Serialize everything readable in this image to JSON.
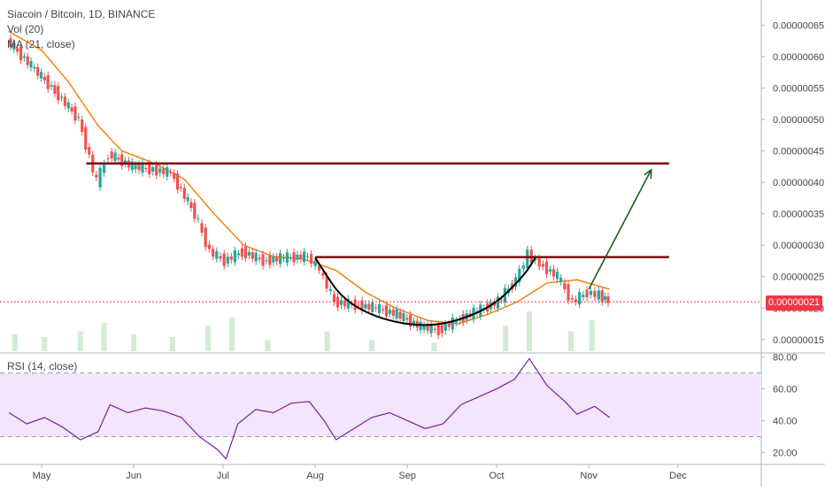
{
  "chart_data": [
    {
      "type": "candlestick",
      "title": "Siacoin / Bitcoin, 1D, BINANCE",
      "indicators": [
        "Vol (20)",
        "MA (21, close)"
      ],
      "x_tick_labels": [
        "May",
        "Jun",
        "Jul",
        "Aug",
        "Sep",
        "Oct",
        "Nov",
        "Dec"
      ],
      "y_tick_labels": [
        "0.00000065",
        "0.00000060",
        "0.00000055",
        "0.00000050",
        "0.00000045",
        "0.00000040",
        "0.00000035",
        "0.00000030",
        "0.00000025",
        "0.00000020",
        "0.00000015"
      ],
      "ylim": [
        1.3e-07,
        6.9e-07
      ],
      "last_price_label": "0.00000021",
      "close_path": [
        {
          "x": "2019-04-20",
          "y": 6.25e-07
        },
        {
          "x": "2019-04-28",
          "y": 5.85e-07
        },
        {
          "x": "2019-05-06",
          "y": 5.45e-07
        },
        {
          "x": "2019-05-14",
          "y": 5e-07
        },
        {
          "x": "2019-05-20",
          "y": 4e-07
        },
        {
          "x": "2019-05-24",
          "y": 4.45e-07
        },
        {
          "x": "2019-06-01",
          "y": 4.25e-07
        },
        {
          "x": "2019-06-08",
          "y": 4.2e-07
        },
        {
          "x": "2019-06-14",
          "y": 4.15e-07
        },
        {
          "x": "2019-06-22",
          "y": 3.5e-07
        },
        {
          "x": "2019-06-27",
          "y": 2.9e-07
        },
        {
          "x": "2019-07-02",
          "y": 2.75e-07
        },
        {
          "x": "2019-07-08",
          "y": 2.9e-07
        },
        {
          "x": "2019-07-15",
          "y": 2.75e-07
        },
        {
          "x": "2019-07-22",
          "y": 2.8e-07
        },
        {
          "x": "2019-07-30",
          "y": 2.82e-07
        },
        {
          "x": "2019-08-03",
          "y": 2.6e-07
        },
        {
          "x": "2019-08-08",
          "y": 2.1e-07
        },
        {
          "x": "2019-08-15",
          "y": 2.05e-07
        },
        {
          "x": "2019-08-22",
          "y": 2e-07
        },
        {
          "x": "2019-08-29",
          "y": 1.9e-07
        },
        {
          "x": "2019-09-06",
          "y": 1.7e-07
        },
        {
          "x": "2019-09-12",
          "y": 1.65e-07
        },
        {
          "x": "2019-09-18",
          "y": 1.8e-07
        },
        {
          "x": "2019-09-25",
          "y": 1.95e-07
        },
        {
          "x": "2019-10-02",
          "y": 2.1e-07
        },
        {
          "x": "2019-10-08",
          "y": 2.45e-07
        },
        {
          "x": "2019-10-12",
          "y": 2.85e-07
        },
        {
          "x": "2019-10-16",
          "y": 2.7e-07
        },
        {
          "x": "2019-10-22",
          "y": 2.5e-07
        },
        {
          "x": "2019-10-27",
          "y": 2.1e-07
        },
        {
          "x": "2019-11-01",
          "y": 2.25e-07
        },
        {
          "x": "2019-11-05",
          "y": 2.2e-07
        },
        {
          "x": "2019-11-08",
          "y": 2.12e-07
        }
      ],
      "ma_21": [
        {
          "x": "2019-04-20",
          "y": 6.4e-07
        },
        {
          "x": "2019-05-01",
          "y": 6.1e-07
        },
        {
          "x": "2019-05-10",
          "y": 5.6e-07
        },
        {
          "x": "2019-05-20",
          "y": 4.9e-07
        },
        {
          "x": "2019-05-28",
          "y": 4.5e-07
        },
        {
          "x": "2019-06-08",
          "y": 4.3e-07
        },
        {
          "x": "2019-06-18",
          "y": 4.05e-07
        },
        {
          "x": "2019-06-28",
          "y": 3.5e-07
        },
        {
          "x": "2019-07-08",
          "y": 3e-07
        },
        {
          "x": "2019-07-18",
          "y": 2.82e-07
        },
        {
          "x": "2019-07-28",
          "y": 2.78e-07
        },
        {
          "x": "2019-08-08",
          "y": 2.6e-07
        },
        {
          "x": "2019-08-18",
          "y": 2.25e-07
        },
        {
          "x": "2019-08-28",
          "y": 2e-07
        },
        {
          "x": "2019-09-08",
          "y": 1.8e-07
        },
        {
          "x": "2019-09-18",
          "y": 1.75e-07
        },
        {
          "x": "2019-09-28",
          "y": 1.9e-07
        },
        {
          "x": "2019-10-08",
          "y": 2.1e-07
        },
        {
          "x": "2019-10-18",
          "y": 2.4e-07
        },
        {
          "x": "2019-10-28",
          "y": 2.45e-07
        },
        {
          "x": "2019-11-08",
          "y": 2.3e-07
        }
      ],
      "annotations": [
        {
          "type": "horizontal-line",
          "name": "resistance-upper",
          "y": 4.3e-07,
          "from": "2019-05-16",
          "to": "2019-11-28",
          "color": "#7b0d0d"
        },
        {
          "type": "horizontal-line",
          "name": "resistance-lower",
          "y": 2.81e-07,
          "from": "2019-08-01",
          "to": "2019-11-28",
          "color": "#7b0d0d"
        },
        {
          "type": "curve",
          "name": "rounding-bottom",
          "points": [
            {
              "x": "2019-08-01",
              "y": 2.8e-07
            },
            {
              "x": "2019-08-12",
              "y": 2e-07
            },
            {
              "x": "2019-09-06",
              "y": 1.65e-07
            },
            {
              "x": "2019-09-28",
              "y": 1.95e-07
            },
            {
              "x": "2019-10-10",
              "y": 2.5e-07
            },
            {
              "x": "2019-10-14",
              "y": 2.8e-07
            }
          ],
          "color": "#000000"
        },
        {
          "type": "arrow",
          "name": "breakout-projection",
          "from": {
            "x": "2019-11-01",
            "y": 2.3e-07
          },
          "to": {
            "x": "2019-11-22",
            "y": 4.2e-07
          },
          "color": "#1b5e20"
        }
      ],
      "current_price_line": 2.1e-07,
      "colors": {
        "up": "#26a69a",
        "down": "#ef5350",
        "ma": "#f57c00",
        "volume_ma": "#f57c00",
        "resistance": "#7b0d0d",
        "projection": "#1b5e20",
        "price_tag": "#f23645"
      }
    },
    {
      "type": "line",
      "title": "RSI (14, close)",
      "y_tick_labels": [
        "80.00",
        "60.00",
        "40.00",
        "20.00"
      ],
      "ylim": [
        13,
        82
      ],
      "band": [
        30,
        70
      ],
      "series": [
        {
          "values": [
            {
              "x": "2019-04-20",
              "y": 45
            },
            {
              "x": "2019-04-26",
              "y": 38
            },
            {
              "x": "2019-05-02",
              "y": 42
            },
            {
              "x": "2019-05-08",
              "y": 36
            },
            {
              "x": "2019-05-14",
              "y": 28
            },
            {
              "x": "2019-05-20",
              "y": 33
            },
            {
              "x": "2019-05-24",
              "y": 50
            },
            {
              "x": "2019-05-30",
              "y": 45
            },
            {
              "x": "2019-06-05",
              "y": 48
            },
            {
              "x": "2019-06-11",
              "y": 46
            },
            {
              "x": "2019-06-17",
              "y": 42
            },
            {
              "x": "2019-06-23",
              "y": 30
            },
            {
              "x": "2019-06-29",
              "y": 22
            },
            {
              "x": "2019-07-02",
              "y": 16
            },
            {
              "x": "2019-07-06",
              "y": 38
            },
            {
              "x": "2019-07-12",
              "y": 47
            },
            {
              "x": "2019-07-18",
              "y": 45
            },
            {
              "x": "2019-07-24",
              "y": 51
            },
            {
              "x": "2019-07-30",
              "y": 52
            },
            {
              "x": "2019-08-04",
              "y": 40
            },
            {
              "x": "2019-08-08",
              "y": 28
            },
            {
              "x": "2019-08-14",
              "y": 35
            },
            {
              "x": "2019-08-20",
              "y": 42
            },
            {
              "x": "2019-08-26",
              "y": 45
            },
            {
              "x": "2019-09-01",
              "y": 40
            },
            {
              "x": "2019-09-07",
              "y": 35
            },
            {
              "x": "2019-09-13",
              "y": 38
            },
            {
              "x": "2019-09-19",
              "y": 50
            },
            {
              "x": "2019-09-25",
              "y": 55
            },
            {
              "x": "2019-10-01",
              "y": 60
            },
            {
              "x": "2019-10-07",
              "y": 66
            },
            {
              "x": "2019-10-12",
              "y": 79
            },
            {
              "x": "2019-10-18",
              "y": 62
            },
            {
              "x": "2019-10-24",
              "y": 52
            },
            {
              "x": "2019-10-28",
              "y": 44
            },
            {
              "x": "2019-11-03",
              "y": 49
            },
            {
              "x": "2019-11-08",
              "y": 42
            }
          ],
          "color": "#7b1fa2"
        }
      ],
      "colors": {
        "band_fill": "#f3e5fb",
        "band_border": "#9e9e9e",
        "line": "#7b1fa2"
      }
    }
  ],
  "volume_bars": [
    {
      "x": "2019-04-22",
      "v": 6
    },
    {
      "x": "2019-05-02",
      "v": 5
    },
    {
      "x": "2019-05-14",
      "v": 7
    },
    {
      "x": "2019-05-22",
      "v": 10
    },
    {
      "x": "2019-06-01",
      "v": 6
    },
    {
      "x": "2019-06-14",
      "v": 5
    },
    {
      "x": "2019-06-26",
      "v": 9
    },
    {
      "x": "2019-07-04",
      "v": 12
    },
    {
      "x": "2019-07-16",
      "v": 4
    },
    {
      "x": "2019-08-05",
      "v": 7
    },
    {
      "x": "2019-08-20",
      "v": 4
    },
    {
      "x": "2019-09-10",
      "v": 3
    },
    {
      "x": "2019-10-04",
      "v": 9
    },
    {
      "x": "2019-10-12",
      "v": 14
    },
    {
      "x": "2019-10-26",
      "v": 7
    },
    {
      "x": "2019-11-02",
      "v": 11
    }
  ]
}
